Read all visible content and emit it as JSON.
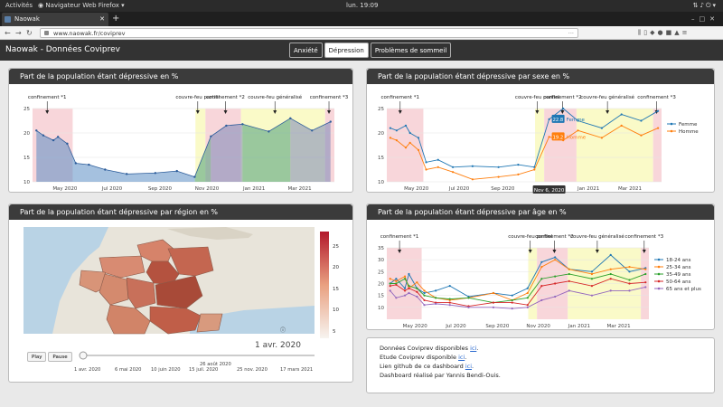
{
  "os": {
    "activities": "Activités",
    "app_name": "Navigateur Web Firefox",
    "clock": "lun. 19:09"
  },
  "browser": {
    "tab_title": "Naowak",
    "url": "www.naowak.fr/coviprev"
  },
  "app": {
    "brand": "Naowak - Données Coviprev",
    "nav": [
      "Anxiété",
      "Dépression",
      "Problèmes de sommeil"
    ]
  },
  "panels": {
    "total": {
      "title": "Part de la population étant dépressive en %"
    },
    "sex": {
      "title": "Part de la population étant dépressive par sexe en %",
      "hover_date": "Nov 6, 2020",
      "hover_f": "22.8",
      "hover_h": "19.2"
    },
    "region": {
      "title": "Part de la population étant dépressive par région en %",
      "date_label": "1 avr. 2020",
      "play": "Play",
      "pause": "Pause"
    },
    "age": {
      "title": "Part de la population étant dépressive par âge en %"
    }
  },
  "annotations": {
    "c1": "confinement *1",
    "cfp": "couvre-feu partiel",
    "c2": "confinement *2",
    "cfg": "couvre-feu généralisé",
    "c3": "confinement *3"
  },
  "x_ticks": [
    "May 2020",
    "Jul 2020",
    "Sep 2020",
    "Nov 2020",
    "Jan 2021",
    "Mar 2021"
  ],
  "region_colorbar_ticks": [
    "25",
    "20",
    "15",
    "10",
    "5"
  ],
  "slider_ticks": [
    "1 avr. 2020",
    "6 mai 2020",
    "10 juin 2020",
    "15 juil. 2020",
    "26 août 2020",
    "25 nov. 2020",
    "17 mars 2021"
  ],
  "info": {
    "line1": "Données Coviprev disponibles",
    "line2": "Etude Coviprev disponible",
    "line3": "Lien github de ce dashboard",
    "line4": "Dashboard réalisé par Yannis Bendi-Ouis.",
    "link": "ici"
  },
  "colors": {
    "femme": "#1f77b4",
    "homme": "#ff7f0e",
    "confinement_band": "#f8d6da",
    "curfew_band": "#fafac8"
  },
  "chart_data": [
    {
      "type": "area",
      "title": "Part de la population étant dépressive en %",
      "x": [
        "2020-03-25",
        "2020-04-03",
        "2020-04-16",
        "2020-04-22",
        "2020-05-04",
        "2020-05-15",
        "2020-06-01",
        "2020-06-22",
        "2020-07-20",
        "2020-08-26",
        "2020-09-23",
        "2020-10-16",
        "2020-11-06",
        "2020-11-26",
        "2020-12-17",
        "2021-01-20",
        "2021-02-17",
        "2021-03-17",
        "2021-04-10"
      ],
      "y": [
        20.5,
        19.5,
        18.5,
        19.2,
        17.8,
        13.8,
        13.5,
        12.5,
        11.6,
        11.8,
        12.2,
        11.0,
        19.3,
        21.5,
        21.8,
        20.3,
        23.0,
        20.5,
        22.3
      ],
      "ylim": [
        10,
        25
      ],
      "yticks": [
        10,
        15,
        20,
        25
      ]
    },
    {
      "type": "line",
      "title": "Part de la population étant dépressive par sexe en %",
      "x": [
        "2020-03-25",
        "2020-04-03",
        "2020-04-16",
        "2020-04-22",
        "2020-05-04",
        "2020-05-15",
        "2020-06-01",
        "2020-06-22",
        "2020-07-20",
        "2020-08-26",
        "2020-09-23",
        "2020-10-16",
        "2020-11-06",
        "2020-11-26",
        "2020-12-17",
        "2021-01-20",
        "2021-02-17",
        "2021-03-17",
        "2021-04-10"
      ],
      "series": [
        {
          "name": "Femme",
          "values": [
            21.0,
            20.5,
            21.5,
            20.0,
            19.0,
            14.0,
            14.5,
            13.0,
            13.2,
            13.0,
            13.5,
            13.0,
            22.8,
            25.0,
            22.5,
            21.0,
            23.8,
            22.5,
            24.5
          ]
        },
        {
          "name": "Homme",
          "values": [
            19.0,
            18.5,
            17.0,
            18.0,
            16.5,
            12.5,
            13.0,
            12.0,
            10.5,
            11.0,
            11.5,
            12.5,
            19.2,
            18.5,
            20.5,
            19.0,
            21.5,
            19.5,
            21.0
          ]
        }
      ],
      "ylim": [
        10,
        25
      ],
      "yticks": [
        10,
        15,
        20,
        25
      ]
    },
    {
      "type": "line",
      "title": "Part de la population étant dépressive par âge en %",
      "x": [
        "2020-03-25",
        "2020-04-03",
        "2020-04-16",
        "2020-04-22",
        "2020-05-04",
        "2020-05-15",
        "2020-06-01",
        "2020-06-22",
        "2020-07-20",
        "2020-08-26",
        "2020-09-23",
        "2020-10-16",
        "2020-11-06",
        "2020-11-26",
        "2020-12-17",
        "2021-01-20",
        "2021-02-17",
        "2021-03-17",
        "2021-04-10"
      ],
      "series": [
        {
          "name": "18-24 ans",
          "values": [
            20.0,
            22.0,
            18.0,
            24.0,
            18.0,
            16.0,
            17.0,
            19.0,
            14.5,
            16.0,
            15.0,
            18.0,
            29.0,
            31.0,
            26.0,
            25.0,
            32.0,
            25.0,
            26.5
          ]
        },
        {
          "name": "25-34 ans",
          "values": [
            22.0,
            21.0,
            23.0,
            18.0,
            20.5,
            17.0,
            14.0,
            13.0,
            14.0,
            16.0,
            13.0,
            16.0,
            27.0,
            30.0,
            26.0,
            24.0,
            26.0,
            27.0,
            26.0
          ]
        },
        {
          "name": "35-49 ans",
          "values": [
            20.0,
            20.0,
            22.0,
            19.0,
            18.0,
            15.0,
            14.0,
            13.5,
            14.0,
            12.0,
            13.0,
            14.0,
            22.0,
            23.0,
            24.0,
            22.0,
            24.0,
            21.5,
            24.0
          ]
        },
        {
          "name": "50-64 ans",
          "values": [
            19.0,
            19.5,
            17.0,
            18.0,
            16.5,
            13.0,
            12.0,
            12.0,
            10.5,
            12.0,
            12.0,
            11.0,
            19.0,
            20.0,
            21.0,
            19.0,
            22.0,
            20.0,
            20.5
          ]
        },
        {
          "name": "65 ans et plus",
          "values": [
            17.0,
            14.0,
            15.0,
            16.0,
            14.5,
            11.0,
            11.5,
            11.0,
            10.0,
            10.0,
            9.5,
            10.0,
            13.0,
            14.5,
            17.0,
            15.0,
            17.0,
            17.0,
            18.5
          ]
        }
      ],
      "ylim": [
        5,
        35
      ],
      "yticks": [
        10,
        15,
        20,
        25,
        30,
        35
      ]
    }
  ]
}
